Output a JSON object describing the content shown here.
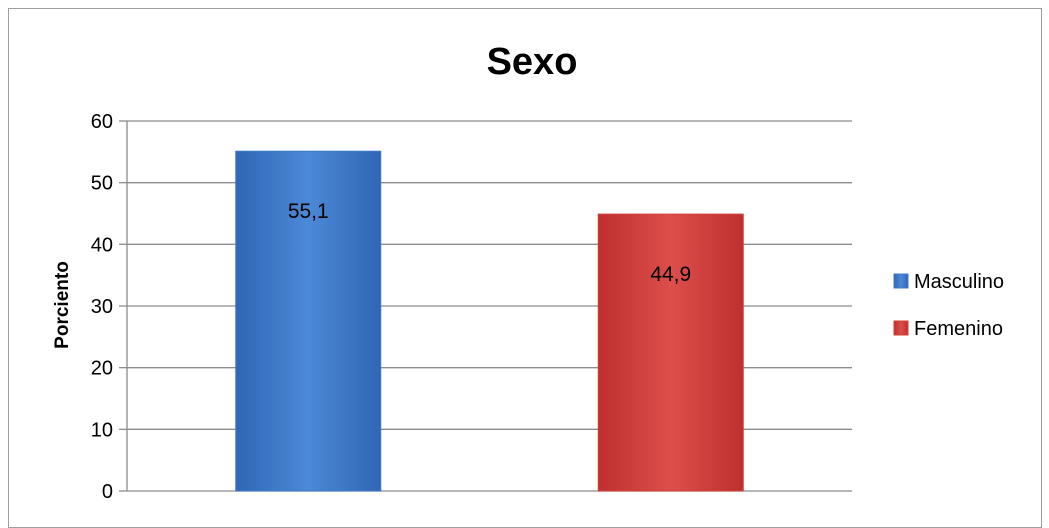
{
  "chart_data": {
    "type": "bar",
    "title": "Sexo",
    "xlabel": "",
    "ylabel": "Porciento",
    "ylim": [
      0,
      60
    ],
    "yticks": [
      0,
      10,
      20,
      30,
      40,
      50,
      60
    ],
    "grid": true,
    "legend_position": "right",
    "series": [
      {
        "name": "Masculino",
        "value": 55.1,
        "label": "55,1",
        "color": "#3f79c8"
      },
      {
        "name": "Femenino",
        "value": 44.9,
        "label": "44,9",
        "color": "#cf3f3c"
      }
    ]
  }
}
